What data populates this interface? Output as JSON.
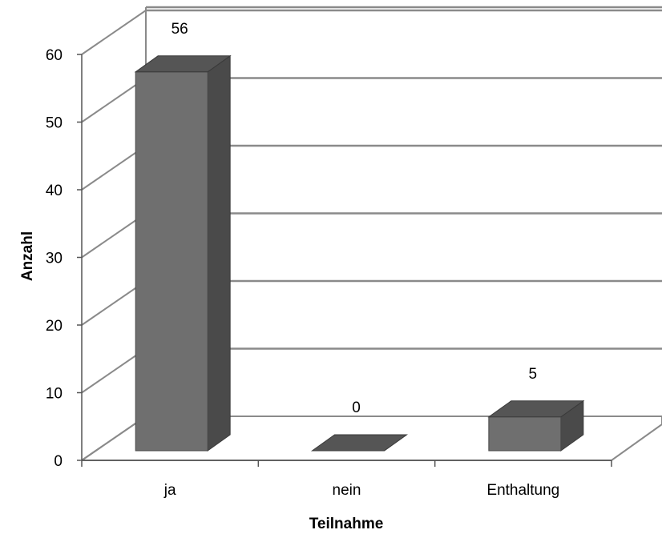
{
  "chart_data": {
    "type": "bar",
    "style": "3d-column",
    "categories": [
      "ja",
      "nein",
      "Enthaltung"
    ],
    "values": [
      56,
      0,
      5
    ],
    "data_labels": [
      "56",
      "0",
      "5"
    ],
    "xlabel": "Teilnahme",
    "ylabel": "Anzahl",
    "ylim": [
      0,
      60
    ],
    "yticks": [
      "0",
      "10",
      "20",
      "30",
      "40",
      "50",
      "60"
    ],
    "grid": true,
    "legend": "none",
    "colors": {
      "bar_front": "#6f6f6f",
      "bar_side": "#4a4a4a",
      "bar_top": "#555555",
      "grid": "#8a8a8a",
      "axis": "#555555"
    }
  }
}
